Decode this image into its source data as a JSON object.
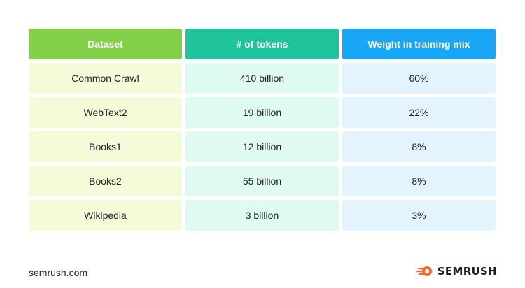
{
  "table": {
    "headers": [
      "Dataset",
      "# of tokens",
      "Weight in training mix"
    ],
    "rows": [
      [
        "Common Crawl",
        "410 billion",
        "60%"
      ],
      [
        "WebText2",
        "19 billion",
        "22%"
      ],
      [
        "Books1",
        "12 billion",
        "8%"
      ],
      [
        "Books2",
        "55 billion",
        "8%"
      ],
      [
        "Wikipedia",
        "3 billion",
        "3%"
      ]
    ]
  },
  "footer": {
    "site": "semrush.com",
    "logo_text": "SEMRUSH",
    "logo_icon": "semrush-flame-icon"
  },
  "colors": {
    "header_col1": "#82d04a",
    "header_col2": "#1fc39c",
    "header_col3": "#1aa6f7",
    "cell_col1": "#f3fbd9",
    "cell_col2": "#dffaee",
    "cell_col3": "#e3f4fe",
    "logo_accent": "#ff642d"
  }
}
